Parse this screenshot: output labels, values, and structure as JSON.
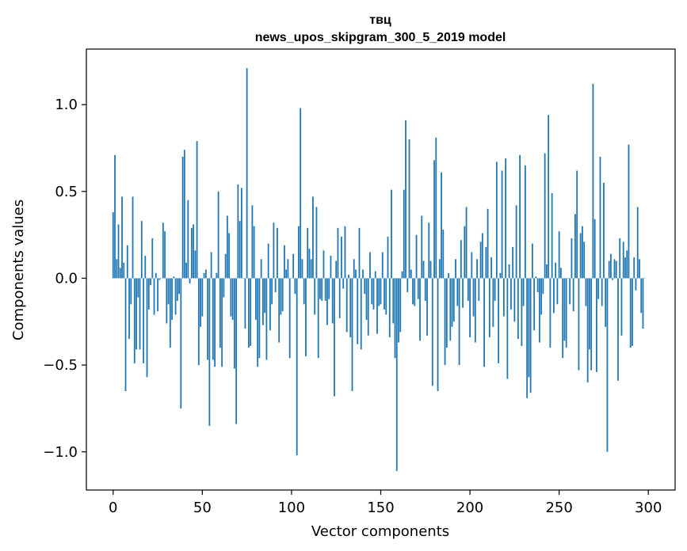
{
  "chart_data": {
    "type": "bar",
    "title_line1": "твц",
    "title_line2": "news_upos_skipgram_300_5_2019 model",
    "xlabel": "Vector components",
    "ylabel": "Components values",
    "xlim": [
      -15,
      315
    ],
    "ylim": [
      -1.22,
      1.32
    ],
    "xticks": [
      0,
      50,
      100,
      150,
      200,
      250,
      300
    ],
    "xtick_labels": [
      "0",
      "50",
      "100",
      "150",
      "200",
      "250",
      "300"
    ],
    "yticks": [
      -1.0,
      -0.5,
      0.0,
      0.5,
      1.0
    ],
    "ytick_labels": [
      "−1.0",
      "−0.5",
      "0.0",
      "0.5",
      "1.0"
    ],
    "bar_color": "#1f77b4",
    "values": [
      0.38,
      0.71,
      0.11,
      0.31,
      0.06,
      0.47,
      0.09,
      -0.65,
      0.19,
      -0.35,
      -0.15,
      0.47,
      -0.49,
      -0.41,
      -0.11,
      -0.41,
      0.33,
      -0.49,
      0.13,
      -0.57,
      -0.18,
      -0.04,
      0.23,
      -0.21,
      0.03,
      -0.19,
      -0.01,
      0.0,
      0.32,
      0.27,
      -0.26,
      -0.15,
      -0.4,
      -0.24,
      0.01,
      -0.21,
      -0.13,
      -0.09,
      -0.75,
      0.7,
      0.74,
      0.09,
      0.45,
      -0.03,
      0.29,
      0.31,
      0.16,
      0.79,
      -0.5,
      -0.28,
      -0.22,
      0.03,
      0.05,
      -0.47,
      -0.85,
      0.15,
      -0.47,
      -0.51,
      0.03,
      0.5,
      -0.4,
      -0.51,
      -0.11,
      0.14,
      0.36,
      0.26,
      -0.22,
      -0.24,
      -0.52,
      -0.84,
      0.54,
      0.33,
      0.52,
      0.0,
      -0.29,
      1.21,
      -0.4,
      -0.39,
      0.42,
      0.3,
      -0.24,
      -0.51,
      -0.46,
      0.11,
      -0.27,
      -0.2,
      -0.47,
      0.2,
      -0.3,
      -0.15,
      0.32,
      -0.08,
      0.29,
      -0.37,
      -0.21,
      -0.19,
      0.19,
      0.05,
      0.11,
      -0.46,
      0.0,
      0.14,
      -0.09,
      -1.02,
      0.3,
      0.98,
      0.11,
      -0.15,
      -0.45,
      0.29,
      0.17,
      0.11,
      0.47,
      -0.21,
      0.41,
      -0.46,
      -0.12,
      -0.13,
      0.16,
      -0.13,
      -0.27,
      -0.12,
      0.13,
      -0.26,
      -0.68,
      0.1,
      0.29,
      -0.23,
      0.24,
      -0.06,
      0.3,
      -0.31,
      0.02,
      -0.34,
      -0.65,
      0.11,
      0.05,
      -0.38,
      0.29,
      -0.41,
      0.05,
      -0.09,
      -0.24,
      -0.33,
      0.15,
      -0.15,
      -0.18,
      0.04,
      -0.32,
      -0.16,
      -0.15,
      0.15,
      -0.18,
      -0.21,
      0.24,
      -0.34,
      0.51,
      -0.26,
      -0.46,
      -1.11,
      -0.37,
      -0.31,
      0.04,
      0.51,
      0.91,
      -0.08,
      0.8,
      0.05,
      -0.15,
      -0.16,
      0.25,
      -0.12,
      -0.36,
      0.36,
      0.1,
      -0.13,
      -0.33,
      0.32,
      0.1,
      -0.62,
      0.68,
      0.81,
      -0.65,
      0.11,
      0.61,
      0.28,
      -0.5,
      -0.4,
      0.03,
      -0.36,
      -0.28,
      -0.25,
      0.11,
      -0.16,
      -0.5,
      0.22,
      -0.17,
      0.3,
      0.41,
      -0.13,
      -0.34,
      0.15,
      -0.22,
      -0.37,
      0.11,
      -0.13,
      0.21,
      0.26,
      -0.51,
      0.18,
      0.4,
      -0.34,
      0.12,
      -0.28,
      -0.13,
      0.67,
      -0.49,
      0.03,
      0.62,
      -0.22,
      0.69,
      -0.58,
      0.08,
      -0.18,
      0.18,
      -0.25,
      0.42,
      -0.35,
      0.71,
      -0.39,
      -0.16,
      0.65,
      -0.69,
      -0.57,
      -0.66,
      0.2,
      -0.3,
      0.01,
      -0.08,
      -0.37,
      -0.21,
      -0.09,
      0.72,
      0.08,
      0.94,
      -0.4,
      0.49,
      -0.2,
      0.09,
      -0.15,
      0.27,
      0.06,
      -0.46,
      -0.36,
      -0.4,
      0.0,
      -0.15,
      0.23,
      -0.19,
      0.37,
      0.62,
      -0.53,
      0.26,
      0.3,
      0.21,
      -0.16,
      -0.6,
      -0.41,
      -0.53,
      1.12,
      0.34,
      -0.54,
      -0.12,
      0.7,
      -0.16,
      0.55,
      -0.28,
      -1.0,
      0.1,
      0.14,
      -0.01,
      0.11,
      0.1,
      -0.59,
      0.23,
      -0.33,
      0.21,
      0.12,
      0.16,
      0.77,
      -0.4,
      -0.39,
      0.12,
      -0.07,
      0.41,
      0.11,
      -0.2,
      -0.29,
      0.0
    ]
  }
}
